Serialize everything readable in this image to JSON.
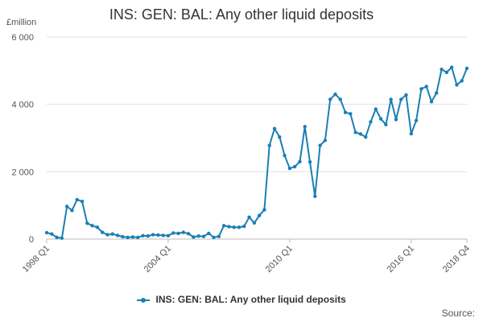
{
  "chart_data": {
    "type": "line",
    "title": "INS: GEN: BAL: Any other liquid deposits",
    "unit_label": "£million",
    "xlabel": "",
    "ylabel": "£million",
    "ylim": [
      0,
      6000
    ],
    "y_ticks": [
      0,
      2000,
      4000,
      6000
    ],
    "y_tick_labels": [
      "0",
      "2 000",
      "4 000",
      "6 000"
    ],
    "x_tick_labels": [
      "1998 Q1",
      "2004 Q1",
      "2010 Q1",
      "2016 Q1",
      "2018 Q4"
    ],
    "x_tick_positions": [
      "1998 Q1",
      "2004 Q1",
      "2010 Q1",
      "2016 Q1",
      "2018 Q4"
    ],
    "grid": "horizontal",
    "legend": "bottom",
    "series": [
      {
        "name": "INS: GEN: BAL: Any other liquid deposits",
        "color": "#1a7fb5",
        "x": [
          "1998 Q1",
          "1998 Q2",
          "1998 Q3",
          "1998 Q4",
          "1999 Q1",
          "1999 Q2",
          "1999 Q3",
          "1999 Q4",
          "2000 Q1",
          "2000 Q2",
          "2000 Q3",
          "2000 Q4",
          "2001 Q1",
          "2001 Q2",
          "2001 Q3",
          "2001 Q4",
          "2002 Q1",
          "2002 Q2",
          "2002 Q3",
          "2002 Q4",
          "2003 Q1",
          "2003 Q2",
          "2003 Q3",
          "2003 Q4",
          "2004 Q1",
          "2004 Q2",
          "2004 Q3",
          "2004 Q4",
          "2005 Q1",
          "2005 Q2",
          "2005 Q3",
          "2005 Q4",
          "2006 Q1",
          "2006 Q2",
          "2006 Q3",
          "2006 Q4",
          "2007 Q1",
          "2007 Q2",
          "2007 Q3",
          "2007 Q4",
          "2008 Q1",
          "2008 Q2",
          "2008 Q3",
          "2008 Q4",
          "2009 Q1",
          "2009 Q2",
          "2009 Q3",
          "2009 Q4",
          "2010 Q1",
          "2010 Q2",
          "2010 Q3",
          "2010 Q4",
          "2011 Q1",
          "2011 Q2",
          "2011 Q3",
          "2011 Q4",
          "2012 Q1",
          "2012 Q2",
          "2012 Q3",
          "2012 Q4",
          "2013 Q1",
          "2013 Q2",
          "2013 Q3",
          "2013 Q4",
          "2014 Q1",
          "2014 Q2",
          "2014 Q3",
          "2014 Q4",
          "2015 Q1",
          "2015 Q2",
          "2015 Q3",
          "2015 Q4",
          "2016 Q1",
          "2016 Q2",
          "2016 Q3",
          "2016 Q4",
          "2017 Q1",
          "2017 Q2",
          "2017 Q3",
          "2017 Q4",
          "2018 Q1",
          "2018 Q2",
          "2018 Q3",
          "2018 Q4"
        ],
        "values": [
          190,
          150,
          50,
          30,
          970,
          850,
          1170,
          1120,
          470,
          400,
          350,
          200,
          130,
          150,
          110,
          70,
          50,
          60,
          50,
          100,
          90,
          130,
          120,
          110,
          100,
          180,
          170,
          200,
          160,
          60,
          90,
          80,
          170,
          50,
          80,
          400,
          370,
          350,
          350,
          380,
          650,
          480,
          700,
          870,
          2780,
          3280,
          3030,
          2480,
          2100,
          2150,
          2300,
          3340,
          2290,
          1270,
          2780,
          2930,
          4150,
          4300,
          4150,
          3760,
          3720,
          3170,
          3120,
          3030,
          3480,
          3860,
          3570,
          3400,
          4150,
          3550,
          4150,
          4280,
          3130,
          3520,
          4460,
          4530,
          4080,
          4340,
          5040,
          4950,
          5100,
          4580,
          4700,
          5070
        ]
      }
    ]
  },
  "legend": {
    "label": "INS: GEN: BAL: Any other liquid deposits"
  },
  "footer": {
    "source_label": "Source:"
  }
}
